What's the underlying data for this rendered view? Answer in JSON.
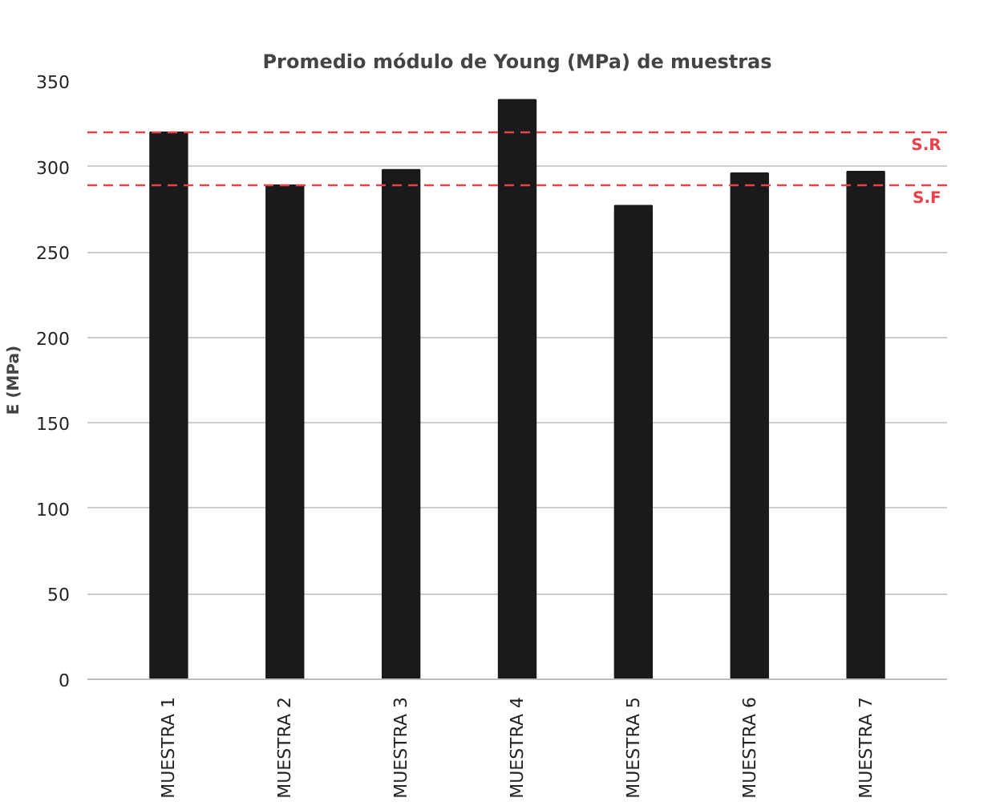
{
  "chart_data": {
    "type": "bar",
    "title": "Promedio módulo de Young (MPa) de muestras",
    "ylabel": "E (MPa)",
    "categories": [
      "MUESTRA 1",
      "MUESTRA 2",
      "MUESTRA 3",
      "MUESTRA 4",
      "MUESTRA 5",
      "MUESTRA 6",
      "MUESTRA 7"
    ],
    "values": [
      320,
      289,
      298,
      339,
      277,
      296,
      297
    ],
    "color": "#1a1a1a",
    "ylim": [
      0,
      350
    ],
    "yticks": [
      0,
      50,
      100,
      150,
      200,
      250,
      300,
      350
    ],
    "grid": "y",
    "ref_lines": [
      {
        "axis": "y",
        "value": 320,
        "label": "S.R",
        "color": "#e8434b",
        "line_style": "dashed"
      },
      {
        "axis": "y",
        "value": 289,
        "label": "S.F",
        "color": "#e8434b",
        "line_style": "dashed"
      }
    ]
  }
}
